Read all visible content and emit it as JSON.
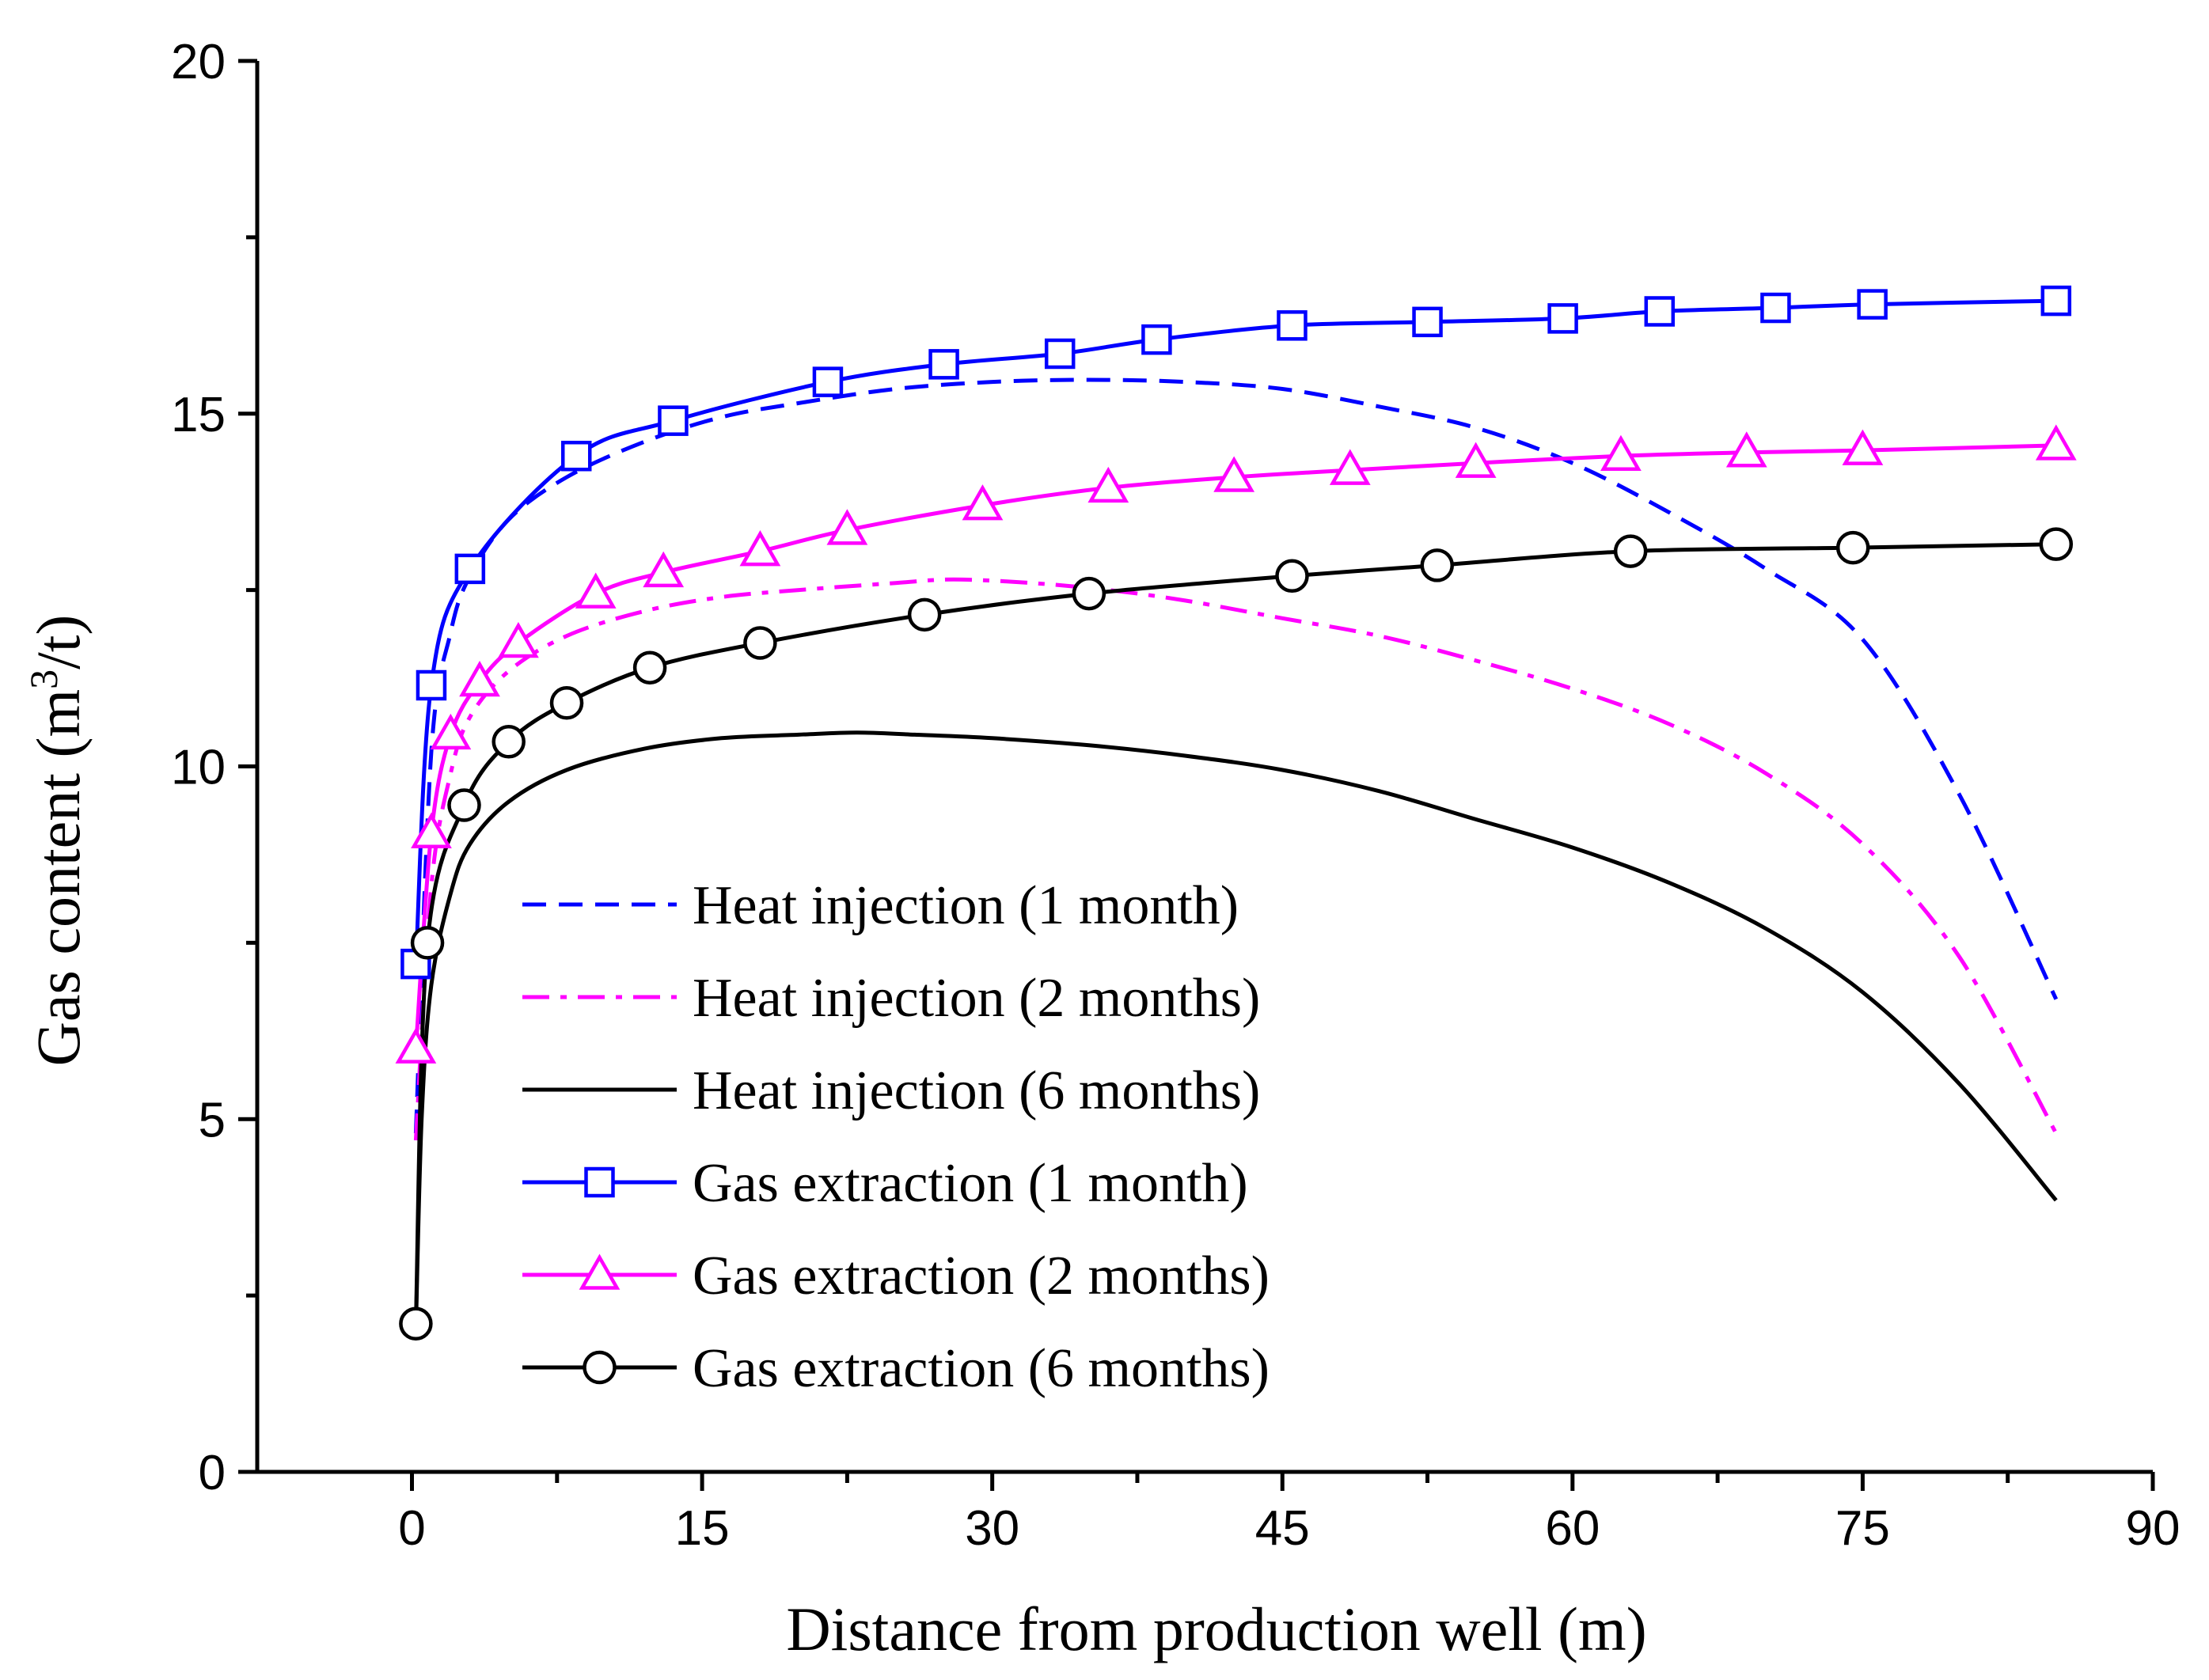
{
  "chart_data": {
    "type": "line",
    "title": "",
    "xlabel": "Distance from production well (m)",
    "ylabel_main": "Gas content (m",
    "ylabel_sup": "3",
    "ylabel_end": "/t)",
    "xlim": [
      -8,
      90
    ],
    "ylim": [
      0,
      20
    ],
    "xticks": [
      0,
      15,
      30,
      45,
      60,
      75,
      90
    ],
    "xtick_labels": [
      "0",
      "15",
      "30",
      "45",
      "60",
      "75",
      "90"
    ],
    "yticks": [
      0,
      5,
      10,
      15,
      20
    ],
    "ytick_labels": [
      "0",
      "5",
      "10",
      "15",
      "20"
    ],
    "legend_position": "center-left",
    "series": [
      {
        "name": "Heat injection (1 month)",
        "color": "#0000ff",
        "line": "dash",
        "marker": "none",
        "x": [
          0.2,
          1,
          2,
          3,
          5,
          8,
          12,
          16,
          20,
          25,
          30,
          35,
          40,
          45,
          50,
          55,
          60,
          65,
          70,
          75,
          80,
          85
        ],
        "y": [
          4.8,
          10.2,
          11.9,
          12.7,
          13.5,
          14.1,
          14.6,
          14.95,
          15.15,
          15.35,
          15.45,
          15.48,
          15.45,
          15.35,
          15.1,
          14.8,
          14.3,
          13.6,
          12.8,
          11.8,
          9.6,
          6.7
        ]
      },
      {
        "name": "Heat injection (2 months)",
        "color": "#ff00ff",
        "line": "dashdot",
        "marker": "none",
        "x": [
          0.2,
          1,
          2,
          3,
          5,
          8,
          12,
          16,
          20,
          25,
          28,
          32,
          36,
          40,
          45,
          50,
          55,
          60,
          65,
          70,
          75,
          80,
          85
        ],
        "y": [
          4.7,
          8.3,
          9.9,
          10.7,
          11.35,
          11.85,
          12.2,
          12.4,
          12.5,
          12.6,
          12.65,
          12.6,
          12.5,
          12.35,
          12.1,
          11.85,
          11.5,
          11.1,
          10.6,
          9.9,
          8.9,
          7.3,
          4.8
        ]
      },
      {
        "name": "Heat injection (6 months)",
        "color": "#000000",
        "line": "solid",
        "marker": "none",
        "x": [
          0.2,
          0.5,
          1,
          2,
          3,
          5,
          8,
          12,
          16,
          20,
          23,
          26,
          30,
          35,
          40,
          45,
          50,
          55,
          60,
          65,
          70,
          75,
          80,
          85
        ],
        "y": [
          2.0,
          5.0,
          6.9,
          8.2,
          8.9,
          9.5,
          9.95,
          10.25,
          10.4,
          10.45,
          10.48,
          10.45,
          10.4,
          10.3,
          10.15,
          9.95,
          9.65,
          9.25,
          8.85,
          8.35,
          7.7,
          6.8,
          5.5,
          3.85
        ]
      },
      {
        "name": "Gas extraction (1 month)",
        "color": "#0000ff",
        "line": "solid",
        "marker": "square",
        "x": [
          0.2,
          1,
          3,
          8.5,
          13.5,
          21.5,
          27.5,
          33.5,
          38.5,
          45.5,
          52.5,
          59.5,
          64.5,
          70.5,
          75.5,
          85
        ],
        "y": [
          7.2,
          11.15,
          12.8,
          14.4,
          14.9,
          15.45,
          15.7,
          15.85,
          16.05,
          16.25,
          16.3,
          16.35,
          16.45,
          16.5,
          16.55,
          16.6
        ]
      },
      {
        "name": "Gas extraction (2 months)",
        "color": "#ff00ff",
        "line": "solid",
        "marker": "triangle",
        "x": [
          0.2,
          1,
          2,
          3.5,
          5.5,
          9.5,
          13,
          18,
          22.5,
          29.5,
          36,
          42.5,
          48.5,
          55,
          62.5,
          69,
          75,
          85
        ],
        "y": [
          6.0,
          9.05,
          10.45,
          11.2,
          11.75,
          12.45,
          12.75,
          13.05,
          13.35,
          13.7,
          13.95,
          14.1,
          14.2,
          14.3,
          14.4,
          14.45,
          14.48,
          14.55
        ]
      },
      {
        "name": "Gas extraction (6 months)",
        "color": "#000000",
        "line": "solid",
        "marker": "circle",
        "x": [
          0.2,
          0.8,
          2.7,
          5,
          8,
          12.3,
          18,
          26.5,
          35,
          45.5,
          53,
          63,
          74.5,
          85
        ],
        "y": [
          2.1,
          7.5,
          9.45,
          10.35,
          10.9,
          11.4,
          11.75,
          12.15,
          12.45,
          12.7,
          12.85,
          13.05,
          13.1,
          13.15
        ]
      }
    ]
  }
}
